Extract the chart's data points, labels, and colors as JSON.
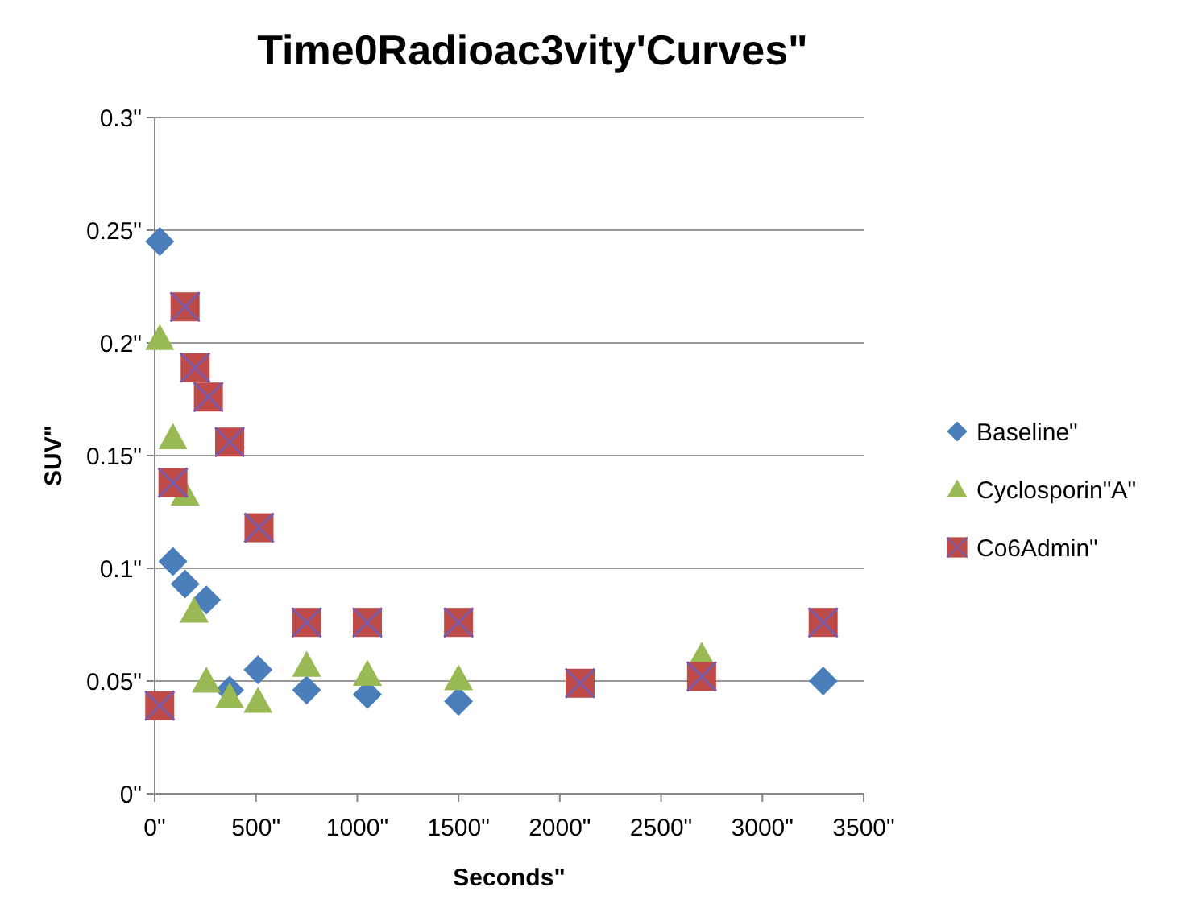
{
  "chart_data": {
    "type": "scatter",
    "title": "Time0Radioac3vity'Curves\"",
    "xlabel": "Seconds\"",
    "ylabel": "SUV\"",
    "xlim": [
      0,
      3500
    ],
    "ylim": [
      0,
      0.3
    ],
    "xticks": [
      {
        "value": 0,
        "label": "0\""
      },
      {
        "value": 500,
        "label": "500\""
      },
      {
        "value": 1000,
        "label": "1000\""
      },
      {
        "value": 1500,
        "label": "1500\""
      },
      {
        "value": 2000,
        "label": "2000\""
      },
      {
        "value": 2500,
        "label": "2500\""
      },
      {
        "value": 3000,
        "label": "3000\""
      },
      {
        "value": 3500,
        "label": "3500\""
      }
    ],
    "yticks": [
      {
        "value": 0,
        "label": "0\""
      },
      {
        "value": 0.05,
        "label": "0.05\""
      },
      {
        "value": 0.1,
        "label": "0.1\""
      },
      {
        "value": 0.15,
        "label": "0.15\""
      },
      {
        "value": 0.2,
        "label": "0.2\""
      },
      {
        "value": 0.25,
        "label": "0.25\""
      },
      {
        "value": 0.3,
        "label": "0.3\""
      }
    ],
    "grid": "y",
    "legend": "right",
    "series": [
      {
        "name": "Baseline\"",
        "color": "#4a7ebb",
        "marker": "diamond",
        "x": [
          25,
          90,
          150,
          255,
          370,
          510,
          750,
          1050,
          1500,
          3300
        ],
        "values": [
          0.245,
          0.103,
          0.093,
          0.086,
          0.046,
          0.055,
          0.046,
          0.044,
          0.041,
          0.05
        ]
      },
      {
        "name": "Cyclosporin\"A\"",
        "color": "#98b954",
        "marker": "triangle",
        "x": [
          25,
          90,
          150,
          195,
          255,
          370,
          510,
          750,
          1050,
          1500,
          2700
        ],
        "values": [
          0.202,
          0.158,
          0.133,
          0.081,
          0.05,
          0.043,
          0.041,
          0.057,
          0.053,
          0.051,
          0.061
        ]
      },
      {
        "name": "Co6Admin\"",
        "color": "#be4b48",
        "marker": "square",
        "x": [
          25,
          90,
          150,
          200,
          265,
          370,
          515,
          750,
          1050,
          1500,
          2100,
          2700,
          3300
        ],
        "values": [
          0.039,
          0.138,
          0.216,
          0.189,
          0.176,
          0.156,
          0.118,
          0.076,
          0.076,
          0.076,
          0.049,
          0.052,
          0.076
        ]
      }
    ]
  }
}
